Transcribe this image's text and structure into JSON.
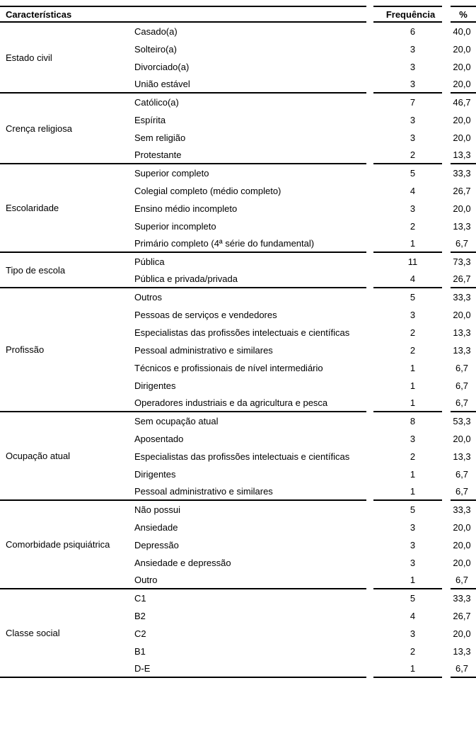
{
  "colors": {
    "text": "#000000",
    "rule": "#000000",
    "background": "#ffffff"
  },
  "table": {
    "header": {
      "characteristics": "Características",
      "frequency": "Frequência",
      "percent": "%"
    },
    "groups": [
      {
        "label": "Estado civil",
        "rows": [
          {
            "item": "Casado(a)",
            "frequency": "6",
            "percent": "40,0"
          },
          {
            "item": "Solteiro(a)",
            "frequency": "3",
            "percent": "20,0"
          },
          {
            "item": "Divorciado(a)",
            "frequency": "3",
            "percent": "20,0"
          },
          {
            "item": "União estável",
            "frequency": "3",
            "percent": "20,0"
          }
        ]
      },
      {
        "label": "Crença religiosa",
        "rows": [
          {
            "item": "Católico(a)",
            "frequency": "7",
            "percent": "46,7"
          },
          {
            "item": "Espírita",
            "frequency": "3",
            "percent": "20,0"
          },
          {
            "item": "Sem religião",
            "frequency": "3",
            "percent": "20,0"
          },
          {
            "item": "Protestante",
            "frequency": "2",
            "percent": "13,3"
          }
        ]
      },
      {
        "label": "Escolaridade",
        "rows": [
          {
            "item": "Superior completo",
            "frequency": "5",
            "percent": "33,3"
          },
          {
            "item": "Colegial completo (médio completo)",
            "frequency": "4",
            "percent": "26,7"
          },
          {
            "item": "Ensino médio incompleto",
            "frequency": "3",
            "percent": "20,0"
          },
          {
            "item": "Superior incompleto",
            "frequency": "2",
            "percent": "13,3"
          },
          {
            "item": "Primário completo (4ª série do fundamental)",
            "frequency": "1",
            "percent": "6,7"
          }
        ]
      },
      {
        "label": "Tipo de escola",
        "rows": [
          {
            "item": "Pública",
            "frequency": "11",
            "percent": "73,3"
          },
          {
            "item": "Pública e privada/privada",
            "frequency": "4",
            "percent": "26,7"
          }
        ]
      },
      {
        "label": "Profissão",
        "rows": [
          {
            "item": "Outros",
            "frequency": "5",
            "percent": "33,3"
          },
          {
            "item": "Pessoas de serviços e vendedores",
            "frequency": "3",
            "percent": "20,0"
          },
          {
            "item": "Especialistas das profissões intelectuais e científicas",
            "frequency": "2",
            "percent": "13,3"
          },
          {
            "item": "Pessoal administrativo e similares",
            "frequency": "2",
            "percent": "13,3"
          },
          {
            "item": "Técnicos e profissionais de nível intermediário",
            "frequency": "1",
            "percent": "6,7"
          },
          {
            "item": "Dirigentes",
            "frequency": "1",
            "percent": "6,7"
          },
          {
            "item": "Operadores industriais e da agricultura e pesca",
            "frequency": "1",
            "percent": "6,7"
          }
        ]
      },
      {
        "label": "Ocupação atual",
        "rows": [
          {
            "item": "Sem ocupação atual",
            "frequency": "8",
            "percent": "53,3"
          },
          {
            "item": "Aposentado",
            "frequency": "3",
            "percent": "20,0"
          },
          {
            "item": "Especialistas das profissões intelectuais e científicas",
            "frequency": "2",
            "percent": "13,3"
          },
          {
            "item": "Dirigentes",
            "frequency": "1",
            "percent": "6,7"
          },
          {
            "item": "Pessoal administrativo e similares",
            "frequency": "1",
            "percent": "6,7"
          }
        ]
      },
      {
        "label": "Comorbidade psiquiátrica",
        "rows": [
          {
            "item": "Não possui",
            "frequency": "5",
            "percent": "33,3"
          },
          {
            "item": "Ansiedade",
            "frequency": "3",
            "percent": "20,0"
          },
          {
            "item": "Depressão",
            "frequency": "3",
            "percent": "20,0"
          },
          {
            "item": "Ansiedade e depressão",
            "frequency": "3",
            "percent": "20,0"
          },
          {
            "item": "Outro",
            "frequency": "1",
            "percent": "6,7"
          }
        ]
      },
      {
        "label": "Classe social",
        "rows": [
          {
            "item": "C1",
            "frequency": "5",
            "percent": "33,3"
          },
          {
            "item": "B2",
            "frequency": "4",
            "percent": "26,7"
          },
          {
            "item": "C2",
            "frequency": "3",
            "percent": "20,0"
          },
          {
            "item": "B1",
            "frequency": "2",
            "percent": "13,3"
          },
          {
            "item": "D-E",
            "frequency": "1",
            "percent": "6,7"
          }
        ]
      }
    ]
  }
}
